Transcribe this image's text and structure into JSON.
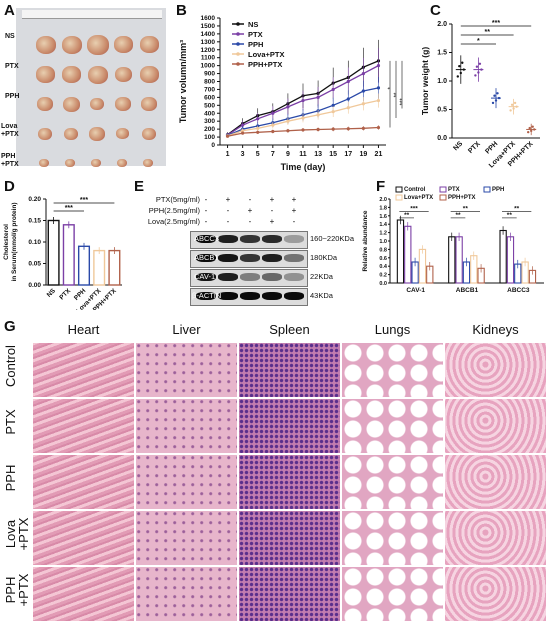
{
  "panels": {
    "A": {
      "label": "A",
      "rows": [
        "NS",
        "PTX",
        "PPH",
        "Lova\n+PTX",
        "PPH\n+PTX"
      ]
    },
    "B": {
      "label": "B"
    },
    "C": {
      "label": "C"
    },
    "D": {
      "label": "D"
    },
    "E": {
      "label": "E",
      "treatments": [
        "PTX(5mg/ml)",
        "PPH(2.5mg/ml)",
        "Lova(2.5mg/ml)"
      ],
      "signs": [
        [
          "-",
          "+",
          "-",
          "+",
          "+"
        ],
        [
          "-",
          "-",
          "+",
          "-",
          "+"
        ],
        [
          "-",
          "-",
          "-",
          "+",
          "-"
        ]
      ],
      "bands": [
        {
          "name": "ABCC3",
          "size": "160~220KDa"
        },
        {
          "name": "ABCB1",
          "size": "180KDa"
        },
        {
          "name": "CAV-1",
          "size": "22KDa"
        },
        {
          "name": "β-ACTIN",
          "size": "43KDa"
        }
      ]
    },
    "F": {
      "label": "F"
    },
    "G": {
      "label": "G",
      "organs": [
        "Heart",
        "Liver",
        "Spleen",
        "Lungs",
        "Kidneys"
      ],
      "groups": [
        "Control",
        "PTX",
        "PPH",
        "Lova\n+PTX",
        "PPH\n+PTX"
      ]
    }
  },
  "chart_data": [
    {
      "id": "B",
      "type": "line",
      "xlabel": "Time (day)",
      "ylabel": "Tumor volumn/mm³",
      "x": [
        1,
        3,
        5,
        7,
        9,
        11,
        13,
        15,
        17,
        19,
        21
      ],
      "xlim": [
        0,
        22
      ],
      "ylim": [
        0,
        1600
      ],
      "yticks": [
        0,
        100,
        200,
        300,
        400,
        500,
        600,
        700,
        800,
        900,
        1000,
        1100,
        1200,
        1300,
        1400,
        1500,
        1600
      ],
      "series": [
        {
          "name": "NS",
          "color": "#111111",
          "values": [
            130,
            270,
            370,
            420,
            520,
            620,
            650,
            780,
            850,
            980,
            1060
          ]
        },
        {
          "name": "PTX",
          "color": "#7b3fa6",
          "values": [
            125,
            250,
            330,
            400,
            480,
            560,
            600,
            700,
            800,
            900,
            1000
          ]
        },
        {
          "name": "PPH",
          "color": "#2a49a8",
          "values": [
            120,
            200,
            240,
            280,
            330,
            380,
            430,
            500,
            580,
            680,
            720
          ]
        },
        {
          "name": "Lova+PTX",
          "color": "#f0c89a",
          "values": [
            115,
            180,
            210,
            250,
            300,
            340,
            380,
            420,
            470,
            520,
            560
          ]
        },
        {
          "name": "PPH+PTX",
          "color": "#b0614a",
          "values": [
            110,
            150,
            160,
            170,
            180,
            190,
            195,
            200,
            205,
            210,
            220
          ]
        }
      ],
      "significance": [
        "*",
        "**",
        "***"
      ]
    },
    {
      "id": "C",
      "type": "scatter",
      "ylabel": "Tumor weight (g)",
      "categories": [
        "NS",
        "PTX",
        "PPH",
        "Lova+PTX",
        "PPH+PTX"
      ],
      "colors": [
        "#111111",
        "#7b3fa6",
        "#2a49a8",
        "#f0c89a",
        "#b0614a"
      ],
      "means": [
        1.2,
        1.2,
        0.7,
        0.55,
        0.15
      ],
      "ylim": [
        0,
        2.0
      ],
      "yticks": [
        0.0,
        0.5,
        1.0,
        1.5,
        2.0
      ],
      "significance": [
        "*",
        "**",
        "***"
      ]
    },
    {
      "id": "D",
      "type": "bar",
      "ylabel": "Cholesterol\nin Serum(mmol/g protein)",
      "categories": [
        "NS",
        "PTX",
        "PPH",
        "Lova+PTX",
        "PPH+PTX"
      ],
      "colors": [
        "#111111",
        "#7b3fa6",
        "#2a49a8",
        "#f0c89a",
        "#b0614a"
      ],
      "values": [
        0.15,
        0.14,
        0.09,
        0.08,
        0.08
      ],
      "ylim": [
        0,
        0.2
      ],
      "yticks": [
        0.0,
        0.05,
        0.1,
        0.15,
        0.2
      ],
      "significance": [
        "***",
        "***"
      ]
    },
    {
      "id": "F",
      "type": "bar",
      "ylabel": "Relative abundance",
      "categories": [
        "CAV-1",
        "ABCB1",
        "ABCC3"
      ],
      "ylim": [
        0,
        2.0
      ],
      "yticks": [
        0.0,
        0.2,
        0.4,
        0.6,
        0.8,
        1.0,
        1.2,
        1.4,
        1.6,
        1.8,
        2.0
      ],
      "series": [
        {
          "name": "Control",
          "color": "#111111",
          "values": [
            1.5,
            1.1,
            1.25
          ]
        },
        {
          "name": "PTX",
          "color": "#7b3fa6",
          "values": [
            1.35,
            1.1,
            1.1
          ]
        },
        {
          "name": "PPH",
          "color": "#2a49a8",
          "values": [
            0.5,
            0.5,
            0.45
          ]
        },
        {
          "name": "Lova+PTX",
          "color": "#f0c89a",
          "values": [
            0.8,
            0.65,
            0.5
          ]
        },
        {
          "name": "PPH+PTX",
          "color": "#b0614a",
          "values": [
            0.4,
            0.35,
            0.3
          ]
        }
      ],
      "significance": [
        "**",
        "***",
        "**",
        "**",
        "**",
        "**"
      ]
    }
  ]
}
